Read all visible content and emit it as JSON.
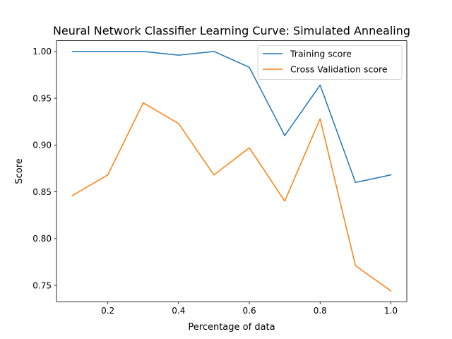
{
  "chart_data": {
    "type": "line",
    "title": "Neural Network Classifier Learning Curve: Simulated Annealing",
    "xlabel": "Percentage of data",
    "ylabel": "Score",
    "xlim": [
      0.055,
      1.045
    ],
    "ylim": [
      0.7325,
      1.0115
    ],
    "xticks": [
      0.2,
      0.4,
      0.6,
      0.8,
      1.0
    ],
    "xtick_labels": [
      "0.2",
      "0.4",
      "0.6",
      "0.8",
      "1.0"
    ],
    "yticks": [
      0.75,
      0.8,
      0.85,
      0.9,
      0.95,
      1.0
    ],
    "ytick_labels": [
      "0.75",
      "0.80",
      "0.85",
      "0.90",
      "0.95",
      "1.00"
    ],
    "grid": false,
    "legend_position": "top-right",
    "x": [
      0.1,
      0.2,
      0.3,
      0.4,
      0.5,
      0.6,
      0.7,
      0.8,
      0.9,
      1.0
    ],
    "series": [
      {
        "name": "Training score",
        "color": "#1f77b4",
        "values": [
          1.0,
          1.0,
          1.0,
          0.996,
          1.0,
          0.983,
          0.91,
          0.964,
          0.86,
          0.868
        ]
      },
      {
        "name": "Cross Validation score",
        "color": "#ff7f0e",
        "values": [
          0.846,
          0.868,
          0.945,
          0.923,
          0.868,
          0.897,
          0.84,
          0.928,
          0.771,
          0.744
        ]
      }
    ]
  }
}
